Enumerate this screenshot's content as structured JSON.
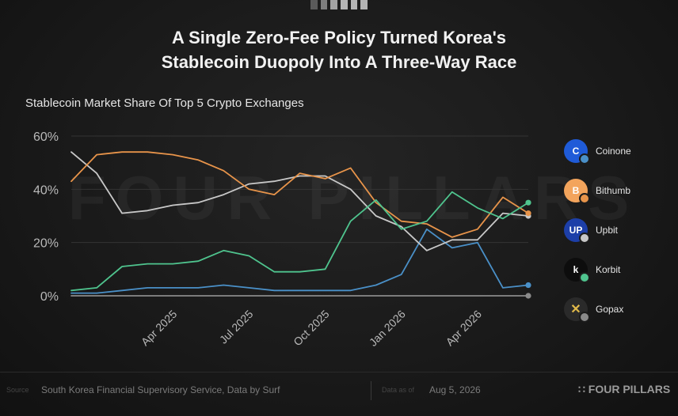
{
  "header": {
    "title_line1": "A Single Zero-Fee Policy Turned Korea's",
    "title_line2": "Stablecoin Duopoly Into A Three-Way Race",
    "subtitle": "Stablecoin Market Share Of Top 5 Crypto Exchanges",
    "watermark": "FOUR PILLARS"
  },
  "legend": {
    "items": [
      {
        "label": "Coinone",
        "icon": "coinone-logo-icon",
        "logo_color": "#1f5bd8",
        "glyph": "C"
      },
      {
        "label": "Bithumb",
        "icon": "bithumb-logo-icon",
        "logo_color": "#f3a45c",
        "glyph": "B"
      },
      {
        "label": "Upbit",
        "icon": "upbit-logo-icon",
        "logo_color": "#1d3fa8",
        "glyph": "UP"
      },
      {
        "label": "Korbit",
        "icon": "korbit-logo-icon",
        "logo_color": "#0d0d0d",
        "glyph": "k"
      },
      {
        "label": "Gopax",
        "icon": "gopax-logo-icon",
        "logo_color": "#2a2a2a",
        "glyph": "✕"
      }
    ]
  },
  "footer": {
    "source_label": "Source",
    "source": "South Korea Financial Supervisory Service, Data by Surf",
    "date_label": "Data as of",
    "date": "Aug 5, 2026",
    "brand": "FOUR PILLARS"
  },
  "chart_data": {
    "type": "line",
    "title": "Stablecoin Market Share Of Top 5 Crypto Exchanges",
    "xlabel": "",
    "ylabel": "",
    "ylim": [
      0,
      60
    ],
    "y_ticks": [
      "0%",
      "20%",
      "40%",
      "60%"
    ],
    "y_tick_values": [
      0,
      20,
      40,
      60
    ],
    "x_tick_labels": [
      "Apr 2025",
      "Jul 2025",
      "Oct 2025",
      "Jan 2026",
      "Apr 2026"
    ],
    "x_tick_index": [
      4,
      7,
      10,
      13,
      16
    ],
    "x": [
      "Jan 2025",
      "Feb 2025",
      "Mar 2025",
      "Apr 2025",
      "May 2025",
      "Jun 2025",
      "Jul 2025",
      "Aug 2025",
      "Sep 2025",
      "Oct 2025",
      "Nov 2025",
      "Dec 2025",
      "Jan 2026",
      "Feb 2026",
      "Mar 2026",
      "Apr 2026",
      "May 2026",
      "Jun 2026",
      "Jul 2026"
    ],
    "grid": true,
    "legend_position": "right",
    "series": [
      {
        "name": "Coinone",
        "color": "#4a90c8",
        "values": [
          1,
          1,
          2,
          3,
          3,
          3,
          4,
          3,
          2,
          2,
          2,
          2,
          4,
          8,
          25,
          18,
          20,
          3,
          4
        ]
      },
      {
        "name": "Bithumb",
        "color": "#e8944a",
        "values": [
          43,
          53,
          54,
          54,
          53,
          51,
          47,
          40,
          38,
          46,
          44,
          48,
          35,
          28,
          27,
          22,
          25,
          37,
          31
        ]
      },
      {
        "name": "Upbit",
        "color": "#c8c8c8",
        "values": [
          54,
          46,
          31,
          32,
          34,
          35,
          38,
          42,
          43,
          45,
          45,
          40,
          30,
          26,
          17,
          21,
          21,
          31,
          30
        ]
      },
      {
        "name": "Korbit",
        "color": "#4fc48e",
        "values": [
          2,
          3,
          11,
          12,
          12,
          13,
          17,
          15,
          9,
          9,
          10,
          28,
          36,
          25,
          28,
          39,
          33,
          29,
          35
        ]
      },
      {
        "name": "Gopax",
        "color": "#8a8a8a",
        "values": [
          0,
          0,
          0,
          0,
          0,
          0,
          0,
          0,
          0,
          0,
          0,
          0,
          0,
          0,
          0,
          0,
          0,
          0,
          0
        ]
      }
    ]
  }
}
